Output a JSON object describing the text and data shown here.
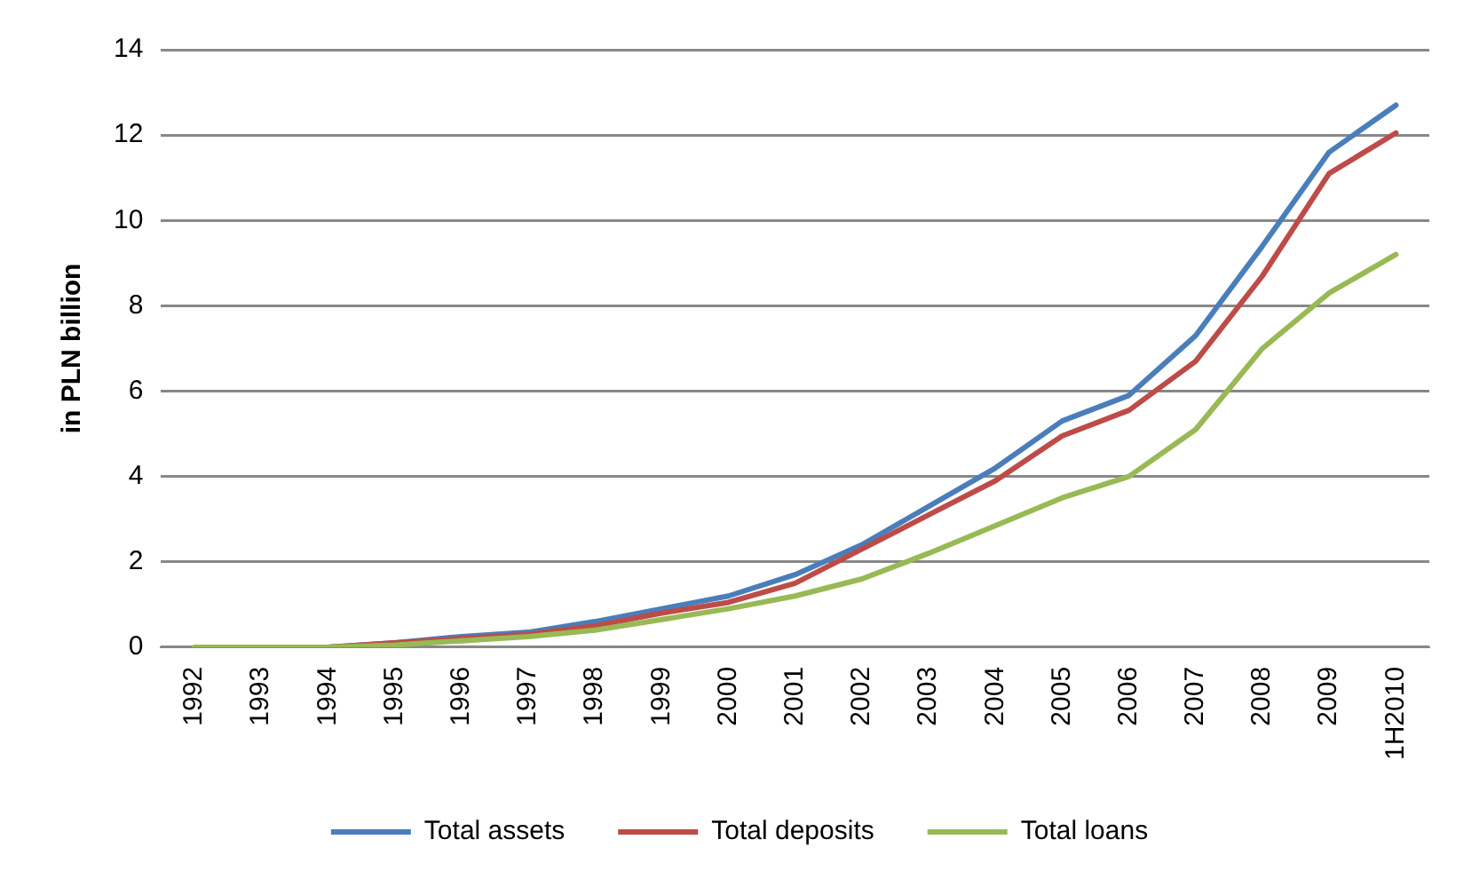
{
  "chart_data": {
    "type": "line",
    "ylabel": "in PLN billion",
    "categories": [
      "1992",
      "1993",
      "1994",
      "1995",
      "1996",
      "1997",
      "1998",
      "1999",
      "2000",
      "2001",
      "2002",
      "2003",
      "2004",
      "2005",
      "2006",
      "2007",
      "2008",
      "2009",
      "1H2010"
    ],
    "series": [
      {
        "name": "Total assets",
        "color": "#4a7ebb",
        "values": [
          null,
          null,
          0,
          0.1,
          0.25,
          0.35,
          0.6,
          0.9,
          1.2,
          1.7,
          2.4,
          3.3,
          4.2,
          5.3,
          5.9,
          7.3,
          9.4,
          11.6,
          12.7
        ]
      },
      {
        "name": "Total deposits",
        "color": "#be4b48",
        "values": [
          null,
          null,
          0,
          0.1,
          0.2,
          0.3,
          0.5,
          0.8,
          1.05,
          1.5,
          2.3,
          3.1,
          3.9,
          4.95,
          5.55,
          6.7,
          8.7,
          11.1,
          12.05
        ]
      },
      {
        "name": "Total loans",
        "color": "#98b954",
        "values": [
          0,
          0,
          0,
          0.05,
          0.15,
          0.25,
          0.4,
          0.65,
          0.9,
          1.2,
          1.6,
          2.2,
          2.85,
          3.5,
          4.0,
          5.1,
          7.0,
          8.3,
          9.2
        ]
      }
    ],
    "ylim": [
      0,
      14
    ],
    "yticks": [
      0,
      2,
      4,
      6,
      8,
      10,
      12,
      14
    ],
    "grid": "y",
    "legend": "bottom",
    "marker": "none",
    "line_style": "solid"
  }
}
